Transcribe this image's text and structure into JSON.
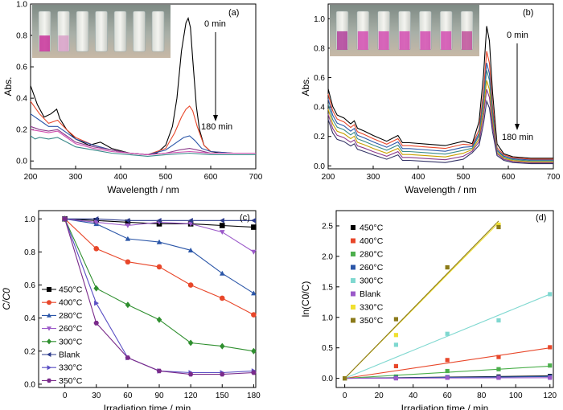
{
  "chart_data": [
    {
      "panel": "(a)",
      "type": "line",
      "xlabel": "Wavelength / nm",
      "ylabel": "Abs.",
      "xlim": [
        200,
        700
      ],
      "ylim": [
        -0.05,
        1.0
      ],
      "xticks": [
        200,
        300,
        400,
        500,
        600,
        700
      ],
      "yticks": [
        0.0,
        0.2,
        0.4,
        0.6,
        0.8,
        1.0
      ],
      "annotations": [
        "0 min",
        "180 min"
      ],
      "series": [
        {
          "color": "#000000",
          "x": [
            200,
            215,
            230,
            245,
            258,
            265,
            280,
            300,
            330,
            355,
            380,
            420,
            460,
            480,
            500,
            515,
            525,
            535,
            545,
            550,
            555,
            560,
            568,
            575,
            585,
            600,
            620,
            650,
            700
          ],
          "y": [
            0.48,
            0.36,
            0.28,
            0.3,
            0.33,
            0.27,
            0.2,
            0.14,
            0.1,
            0.12,
            0.08,
            0.05,
            0.04,
            0.05,
            0.1,
            0.22,
            0.4,
            0.7,
            0.88,
            0.91,
            0.85,
            0.65,
            0.35,
            0.2,
            0.1,
            0.06,
            0.05,
            0.05,
            0.05
          ]
        },
        {
          "color": "#e8472a",
          "x": [
            200,
            220,
            240,
            260,
            280,
            300,
            340,
            380,
            420,
            460,
            500,
            520,
            535,
            545,
            553,
            560,
            570,
            585,
            600,
            650,
            700
          ],
          "y": [
            0.38,
            0.3,
            0.24,
            0.26,
            0.2,
            0.15,
            0.1,
            0.07,
            0.05,
            0.04,
            0.08,
            0.18,
            0.28,
            0.33,
            0.35,
            0.32,
            0.22,
            0.1,
            0.06,
            0.05,
            0.05
          ]
        },
        {
          "color": "#2b56a8",
          "x": [
            200,
            220,
            240,
            260,
            280,
            300,
            340,
            380,
            420,
            460,
            500,
            520,
            540,
            553,
            565,
            580,
            600,
            650,
            700
          ],
          "y": [
            0.3,
            0.26,
            0.22,
            0.22,
            0.18,
            0.14,
            0.1,
            0.07,
            0.05,
            0.04,
            0.07,
            0.11,
            0.15,
            0.16,
            0.13,
            0.08,
            0.06,
            0.05,
            0.05
          ]
        },
        {
          "color": "#8b3a8b",
          "x": [
            200,
            220,
            240,
            260,
            280,
            300,
            340,
            380,
            420,
            460,
            500,
            530,
            553,
            570,
            600,
            650,
            700
          ],
          "y": [
            0.22,
            0.2,
            0.19,
            0.2,
            0.16,
            0.12,
            0.09,
            0.07,
            0.05,
            0.04,
            0.05,
            0.07,
            0.08,
            0.07,
            0.05,
            0.05,
            0.05
          ]
        },
        {
          "color": "#d14fb0",
          "x": [
            200,
            220,
            240,
            260,
            280,
            300,
            340,
            380,
            420,
            460,
            500,
            553,
            600,
            650,
            700
          ],
          "y": [
            0.2,
            0.19,
            0.18,
            0.19,
            0.15,
            0.11,
            0.08,
            0.06,
            0.05,
            0.04,
            0.05,
            0.06,
            0.05,
            0.05,
            0.05
          ]
        },
        {
          "color": "#3a8a8a",
          "x": [
            200,
            210,
            220,
            240,
            260,
            280,
            300,
            340,
            380,
            420,
            460,
            500,
            553,
            600,
            650,
            700
          ],
          "y": [
            0.16,
            0.14,
            0.15,
            0.14,
            0.15,
            0.12,
            0.09,
            0.07,
            0.05,
            0.04,
            0.03,
            0.04,
            0.05,
            0.04,
            0.04,
            0.04
          ]
        }
      ]
    },
    {
      "panel": "(b)",
      "type": "line",
      "xlabel": "Wavelength / nm",
      "ylabel": "Abs.",
      "xlim": [
        200,
        700
      ],
      "ylim": [
        -0.02,
        1.1
      ],
      "xticks": [
        200,
        300,
        400,
        500,
        600,
        700
      ],
      "yticks": [
        0.0,
        0.2,
        0.4,
        0.6,
        0.8,
        1.0
      ],
      "annotations": [
        "0 min",
        "180 min"
      ],
      "peaks": [
        0.95,
        0.78,
        0.7,
        0.65,
        0.58,
        0.52,
        0.44
      ],
      "colors": [
        "#000000",
        "#e8472a",
        "#2b56a8",
        "#3a8a8a",
        "#c9a000",
        "#8b3a8b",
        "#333366"
      ]
    },
    {
      "panel": "(c)",
      "type": "line",
      "xlabel": "Irradiation time / min",
      "ylabel": "C/C0",
      "xlim": [
        -25,
        182
      ],
      "ylim": [
        -0.02,
        1.05
      ],
      "xticks": [
        0,
        30,
        60,
        90,
        120,
        150,
        180
      ],
      "yticks": [
        0.0,
        0.2,
        0.4,
        0.6,
        0.8,
        1.0
      ],
      "x": [
        0,
        30,
        60,
        90,
        120,
        150,
        180
      ],
      "series": [
        {
          "name": "450°C",
          "color": "#000000",
          "marker": "square",
          "values": [
            1.0,
            0.99,
            0.98,
            0.97,
            0.97,
            0.96,
            0.95
          ]
        },
        {
          "name": "400°C",
          "color": "#e8472a",
          "marker": "circle",
          "values": [
            1.0,
            0.82,
            0.74,
            0.71,
            0.6,
            0.52,
            0.42
          ]
        },
        {
          "name": "280°C",
          "color": "#2b56a8",
          "marker": "triangle-up",
          "values": [
            1.0,
            0.97,
            0.88,
            0.86,
            0.81,
            0.67,
            0.55
          ]
        },
        {
          "name": "260°C",
          "color": "#9b59c9",
          "marker": "triangle-down",
          "values": [
            1.0,
            0.98,
            0.96,
            0.98,
            0.97,
            0.92,
            0.8
          ]
        },
        {
          "name": "300°C",
          "color": "#2f8f2f",
          "marker": "diamond",
          "values": [
            1.0,
            0.58,
            0.48,
            0.39,
            0.25,
            0.23,
            0.2
          ]
        },
        {
          "name": "Blank",
          "color": "#2b3a8b",
          "marker": "triangle-left",
          "values": [
            1.0,
            1.0,
            0.99,
            0.99,
            0.99,
            0.99,
            0.99
          ]
        },
        {
          "name": "330°C",
          "color": "#5a4fc4",
          "marker": "triangle-right",
          "values": [
            1.0,
            0.49,
            0.16,
            0.08,
            0.07,
            0.07,
            0.08
          ]
        },
        {
          "name": "350°C",
          "color": "#7a2b8b",
          "marker": "hexagon",
          "values": [
            1.0,
            0.37,
            0.16,
            0.08,
            0.06,
            0.06,
            0.07
          ]
        }
      ]
    },
    {
      "panel": "(d)",
      "type": "scatter",
      "xlabel": "Irradiation time / min",
      "ylabel": "ln(C0/C)",
      "xlim": [
        -5,
        122
      ],
      "ylim": [
        -0.15,
        2.75
      ],
      "xticks": [
        0,
        20,
        40,
        60,
        80,
        100,
        120
      ],
      "yticks": [
        0.0,
        0.5,
        1.0,
        1.5,
        2.0,
        2.5
      ],
      "series": [
        {
          "name": "450°C",
          "color": "#000000",
          "points": [
            [
              0,
              0
            ],
            [
              30,
              0.01
            ],
            [
              60,
              0.02
            ],
            [
              90,
              0.03
            ],
            [
              120,
              0.04
            ]
          ],
          "fit": [
            [
              0,
              0
            ],
            [
              120,
              0.04
            ]
          ]
        },
        {
          "name": "400°C",
          "color": "#e8472a",
          "points": [
            [
              0,
              0
            ],
            [
              30,
              0.2
            ],
            [
              60,
              0.3
            ],
            [
              90,
              0.35
            ],
            [
              120,
              0.51
            ]
          ],
          "fit": [
            [
              0,
              0
            ],
            [
              120,
              0.5
            ]
          ]
        },
        {
          "name": "280°C",
          "color": "#4caf4c",
          "points": [
            [
              0,
              0
            ],
            [
              30,
              0.03
            ],
            [
              60,
              0.12
            ],
            [
              90,
              0.15
            ],
            [
              120,
              0.21
            ]
          ],
          "fit": [
            [
              0,
              0
            ],
            [
              120,
              0.2
            ]
          ]
        },
        {
          "name": "260°C",
          "color": "#2b56a8",
          "points": [
            [
              0,
              0
            ],
            [
              30,
              0.01
            ],
            [
              60,
              0.02
            ],
            [
              90,
              0.02
            ],
            [
              120,
              0.03
            ]
          ],
          "fit": [
            [
              0,
              0
            ],
            [
              120,
              0.03
            ]
          ]
        },
        {
          "name": "300°C",
          "color": "#7fd8d0",
          "points": [
            [
              0,
              0
            ],
            [
              30,
              0.55
            ],
            [
              60,
              0.73
            ],
            [
              90,
              0.95
            ],
            [
              120,
              1.38
            ]
          ],
          "fit": [
            [
              0,
              0
            ],
            [
              120,
              1.38
            ]
          ]
        },
        {
          "name": "Blank",
          "color": "#9b59c9",
          "points": [
            [
              0,
              0
            ],
            [
              30,
              0.0
            ],
            [
              60,
              0.01
            ],
            [
              90,
              0.01
            ],
            [
              120,
              0.01
            ]
          ],
          "fit": [
            [
              0,
              0
            ],
            [
              120,
              0.01
            ]
          ]
        },
        {
          "name": "330°C",
          "color": "#f0e030",
          "points": [
            [
              0,
              0
            ],
            [
              30,
              0.71
            ],
            [
              60,
              1.82
            ],
            [
              90,
              2.52
            ]
          ],
          "fit": [
            [
              0,
              0
            ],
            [
              90,
              2.55
            ]
          ]
        },
        {
          "name": "350°C",
          "color": "#8b7a1a",
          "points": [
            [
              0,
              0
            ],
            [
              30,
              0.97
            ],
            [
              60,
              1.82
            ],
            [
              90,
              2.48
            ]
          ],
          "fit": [
            [
              0,
              0
            ],
            [
              90,
              2.58
            ]
          ]
        }
      ]
    }
  ]
}
